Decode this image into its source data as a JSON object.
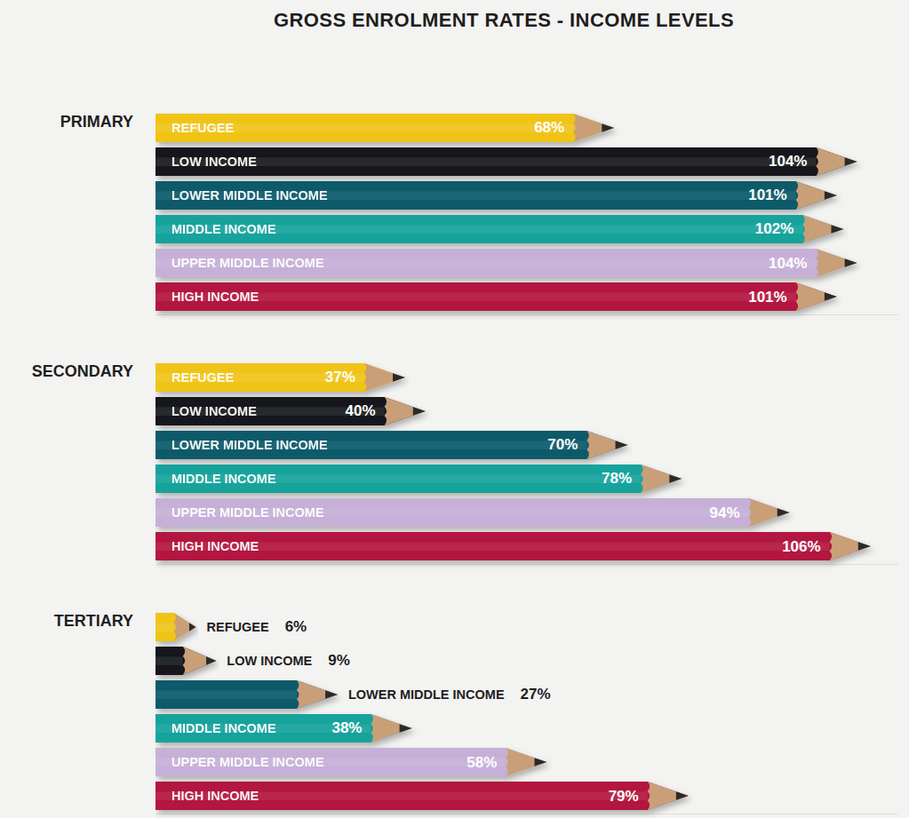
{
  "chart_data": {
    "type": "bar",
    "title": "GROSS ENROLMENT RATES - INCOME LEVELS",
    "orientation": "horizontal",
    "data_labels": true,
    "tick_labels": false,
    "categories": [
      "PRIMARY",
      "SECONDARY",
      "TERTIARY"
    ],
    "xlim": [
      0,
      110
    ],
    "series": [
      {
        "name": "REFUGEE",
        "color": "#f0c419",
        "values": [
          68,
          37,
          6
        ],
        "value_labels": [
          "68%",
          "37%",
          "6%"
        ]
      },
      {
        "name": "LOW INCOME",
        "color": "#17191c",
        "values": [
          104,
          40,
          9
        ],
        "value_labels": [
          "104%",
          "40%",
          "9%"
        ]
      },
      {
        "name": "LOWER MIDDLE INCOME",
        "color": "#0e5a6b",
        "values": [
          101,
          70,
          27
        ],
        "value_labels": [
          "101%",
          "70%",
          "27%"
        ]
      },
      {
        "name": "MIDDLE INCOME",
        "color": "#17a39c",
        "values": [
          102,
          78,
          38
        ],
        "value_labels": [
          "102%",
          "78%",
          "38%"
        ]
      },
      {
        "name": "UPPER MIDDLE INCOME",
        "color": "#c6b0d8",
        "values": [
          104,
          94,
          58
        ],
        "value_labels": [
          "104%",
          "94%",
          "58%"
        ]
      },
      {
        "name": "HIGH INCOME",
        "color": "#b3153f",
        "values": [
          101,
          106,
          79
        ],
        "value_labels": [
          "101%",
          "106%",
          "79%"
        ]
      }
    ]
  }
}
